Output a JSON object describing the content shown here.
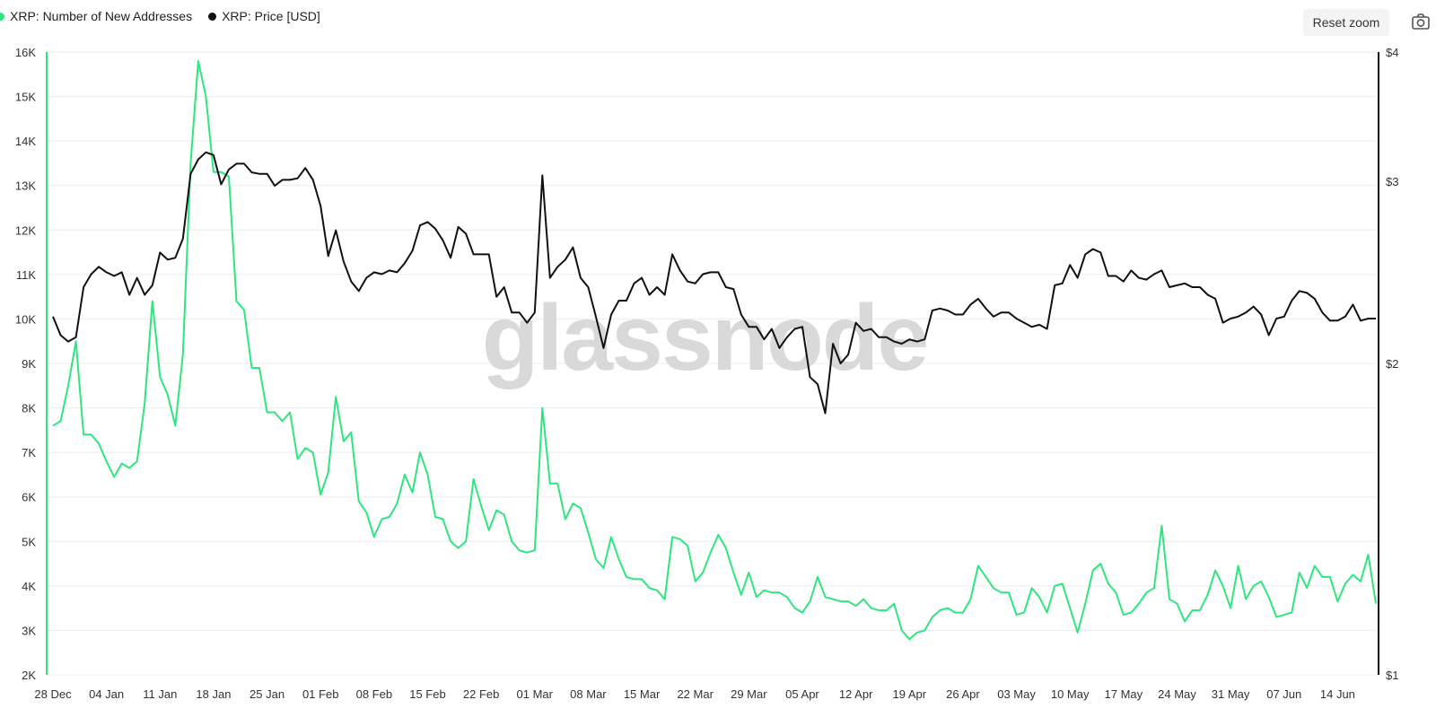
{
  "legend": {
    "series_a_label": "XRP: Number of New Addresses",
    "series_b_label": "XRP: Price [USD]"
  },
  "toolbar": {
    "reset_zoom_label": "Reset zoom",
    "camera_icon": "camera-icon"
  },
  "watermark": "glassnode",
  "colors": {
    "new_addresses": "#2ee67e",
    "price": "#111111",
    "grid": "#ececec"
  },
  "chart_data": {
    "type": "line",
    "title": "",
    "xlabel": "",
    "ylabel_left": "",
    "ylabel_right": "",
    "x_ticks": [
      "28 Dec",
      "04 Jan",
      "11 Jan",
      "18 Jan",
      "25 Jan",
      "01 Feb",
      "08 Feb",
      "15 Feb",
      "22 Feb",
      "01 Mar",
      "08 Mar",
      "15 Mar",
      "22 Mar",
      "29 Mar",
      "05 Apr",
      "12 Apr",
      "19 Apr",
      "26 Apr",
      "03 May",
      "10 May",
      "17 May",
      "24 May",
      "31 May",
      "07 Jun",
      "14 Jun"
    ],
    "y_left_ticks": [
      "2K",
      "3K",
      "4K",
      "5K",
      "6K",
      "7K",
      "8K",
      "9K",
      "10K",
      "11K",
      "12K",
      "13K",
      "14K",
      "15K",
      "16K"
    ],
    "y_left_range": [
      2000,
      16000
    ],
    "y_right_ticks": [
      "$1",
      "$2",
      "$3",
      "$4"
    ],
    "y_right_range": [
      1,
      4
    ],
    "y_right_scale": "log",
    "grid": true,
    "legend_position": "top-left",
    "x_start_date": "2024-12-28",
    "x_end_date": "2025-06-19",
    "series": [
      {
        "name": "XRP: Number of New Addresses",
        "axis": "left",
        "values": [
          7600,
          7700,
          8500,
          9500,
          7400,
          7400,
          7200,
          6800,
          6450,
          6750,
          6650,
          6800,
          8100,
          10400,
          8700,
          8300,
          7600,
          9200,
          13500,
          15800,
          15000,
          13300,
          13300,
          13200,
          10400,
          10200,
          8900,
          8900,
          7900,
          7900,
          7700,
          7900,
          6850,
          7100,
          7000,
          6050,
          6550,
          8250,
          7250,
          7450,
          5900,
          5650,
          5100,
          5500,
          5550,
          5850,
          6500,
          6100,
          7000,
          6500,
          5550,
          5500,
          5000,
          4850,
          5000,
          6400,
          5800,
          5250,
          5700,
          5600,
          5000,
          4800,
          4750,
          4800,
          8000,
          6300,
          6300,
          5500,
          5850,
          5750,
          5200,
          4600,
          4400,
          5100,
          4600,
          4200,
          4150,
          4150,
          3950,
          3900,
          3700,
          5100,
          5050,
          4900,
          4100,
          4300,
          4750,
          5150,
          4850,
          4300,
          3800,
          4300,
          3750,
          3900,
          3850,
          3850,
          3750,
          3500,
          3400,
          3650,
          4200,
          3750,
          3700,
          3650,
          3650,
          3550,
          3700,
          3500,
          3450,
          3450,
          3600,
          3000,
          2800,
          2950,
          3000,
          3300,
          3450,
          3500,
          3400,
          3400,
          3700,
          4450,
          4200,
          3950,
          3850,
          3850,
          3350,
          3400,
          3950,
          3750,
          3400,
          4000,
          4050,
          3500,
          2950,
          3600,
          4350,
          4500,
          4050,
          3850,
          3350,
          3400,
          3600,
          3850,
          3950,
          5350,
          3700,
          3600,
          3200,
          3450,
          3450,
          3800,
          4350,
          4000,
          3500,
          4450,
          3700,
          4000,
          4100,
          3750,
          3300,
          3350,
          3400,
          4300,
          3950,
          4450,
          4200,
          4200,
          3650,
          4050,
          4250,
          4100,
          4700,
          3600
        ],
        "x_end_index_note": ""
      },
      {
        "name": "XRP: Price [USD]",
        "axis": "right",
        "values": [
          2.22,
          2.13,
          2.1,
          2.12,
          2.37,
          2.44,
          2.48,
          2.45,
          2.43,
          2.45,
          2.33,
          2.42,
          2.33,
          2.38,
          2.56,
          2.52,
          2.53,
          2.64,
          3.05,
          3.15,
          3.2,
          3.18,
          2.98,
          3.08,
          3.12,
          3.12,
          3.06,
          3.05,
          3.05,
          2.97,
          3.01,
          3.01,
          3.02,
          3.09,
          3.01,
          2.84,
          2.54,
          2.69,
          2.51,
          2.4,
          2.35,
          2.42,
          2.45,
          2.44,
          2.46,
          2.45,
          2.5,
          2.57,
          2.72,
          2.74,
          2.7,
          2.63,
          2.53,
          2.71,
          2.67,
          2.55,
          2.55,
          2.55,
          2.32,
          2.37,
          2.24,
          2.24,
          2.19,
          2.24,
          3.04,
          2.42,
          2.48,
          2.52,
          2.59,
          2.42,
          2.37,
          2.22,
          2.07,
          2.23,
          2.3,
          2.3,
          2.39,
          2.42,
          2.33,
          2.37,
          2.33,
          2.55,
          2.46,
          2.4,
          2.39,
          2.44,
          2.45,
          2.45,
          2.37,
          2.36,
          2.23,
          2.17,
          2.17,
          2.11,
          2.16,
          2.07,
          2.12,
          2.16,
          2.17,
          1.94,
          1.91,
          1.79,
          2.09,
          2.0,
          2.04,
          2.19,
          2.15,
          2.16,
          2.12,
          2.12,
          2.1,
          2.09,
          2.11,
          2.1,
          2.11,
          2.25,
          2.26,
          2.25,
          2.23,
          2.23,
          2.28,
          2.31,
          2.26,
          2.22,
          2.24,
          2.24,
          2.21,
          2.19,
          2.17,
          2.18,
          2.16,
          2.38,
          2.39,
          2.49,
          2.42,
          2.55,
          2.58,
          2.56,
          2.43,
          2.43,
          2.4,
          2.46,
          2.42,
          2.41,
          2.44,
          2.46,
          2.37,
          2.38,
          2.39,
          2.37,
          2.37,
          2.33,
          2.31,
          2.19,
          2.21,
          2.22,
          2.24,
          2.27,
          2.23,
          2.13,
          2.21,
          2.22,
          2.3,
          2.35,
          2.34,
          2.31,
          2.24,
          2.2,
          2.2,
          2.22,
          2.28,
          2.2,
          2.21,
          2.21
        ]
      }
    ]
  }
}
